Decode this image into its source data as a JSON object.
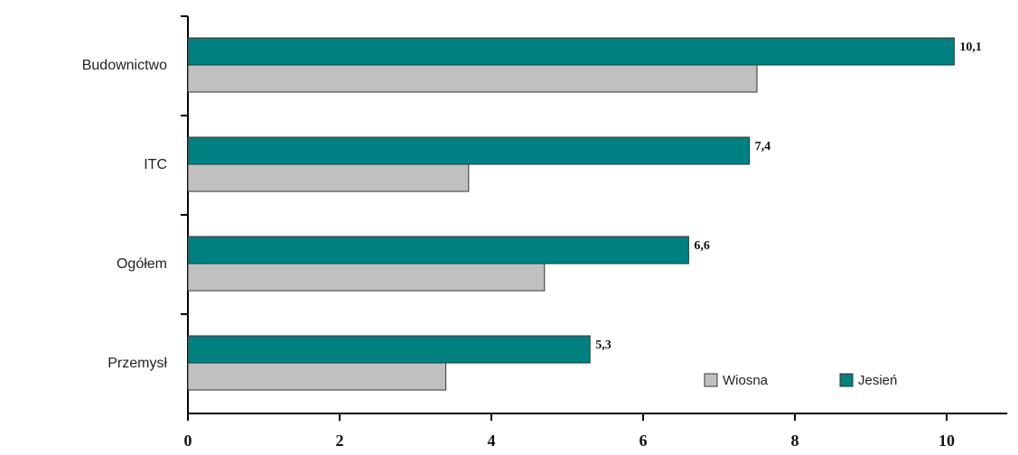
{
  "chart_data": {
    "type": "hbar",
    "categories": [
      "Budownictwo",
      "ITC",
      "Ogółem",
      "Przemysł"
    ],
    "series": [
      {
        "name": "Jesień",
        "color": "#008080",
        "values": [
          10.1,
          7.4,
          6.6,
          5.3
        ],
        "value_labels": [
          "10,1",
          "7,4",
          "6,6",
          "5,3"
        ]
      },
      {
        "name": "Wiosna",
        "color": "#c0c0c0",
        "values": [
          7.5,
          3.7,
          4.7,
          3.4
        ]
      }
    ],
    "xlim": [
      0,
      10.8
    ],
    "xticks": [
      0,
      2,
      4,
      6,
      8,
      10
    ],
    "legend_order": [
      1,
      0
    ]
  }
}
